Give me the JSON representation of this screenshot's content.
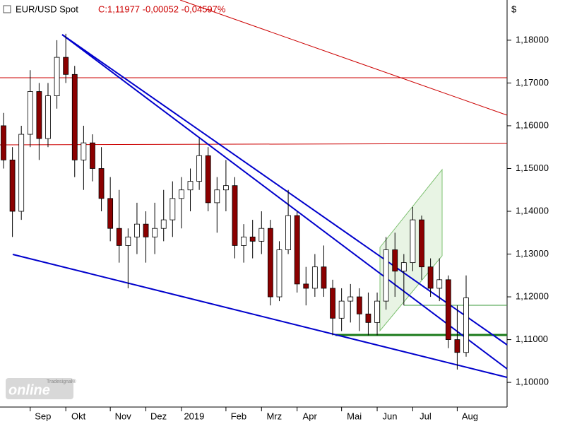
{
  "chart_data": {
    "type": "candlestick",
    "title": "EUR/USD Spot",
    "subtitle": "C:1,11977 -0,00052 -0,04597%",
    "y_axis_label": "$",
    "watermark": {
      "brand": "Tradesignal®",
      "text": "online"
    },
    "up_color": "#ffffff",
    "down_color": "#8b0000",
    "categories": [
      null,
      null,
      null,
      "Sep",
      null,
      null,
      null,
      "Okt",
      null,
      null,
      null,
      null,
      "Nov",
      null,
      null,
      null,
      "Dez",
      null,
      null,
      null,
      "2019",
      null,
      null,
      null,
      null,
      "Feb",
      null,
      null,
      null,
      "Mrz",
      null,
      null,
      null,
      "Apr",
      null,
      null,
      null,
      null,
      "Mai",
      null,
      null,
      null,
      "Jun",
      null,
      null,
      null,
      "Jul",
      null,
      null,
      null,
      null,
      "Aug",
      null
    ],
    "open": [
      1.16,
      1.152,
      1.14,
      1.158,
      1.168,
      1.157,
      1.167,
      1.176,
      1.172,
      1.152,
      1.156,
      1.15,
      1.143,
      1.136,
      1.132,
      1.134,
      1.137,
      1.134,
      1.136,
      1.138,
      1.143,
      1.145,
      1.147,
      1.153,
      1.142,
      1.145,
      1.146,
      1.132,
      1.134,
      1.133,
      1.136,
      1.12,
      1.131,
      1.139,
      1.123,
      1.122,
      1.127,
      1.122,
      1.115,
      1.119,
      1.12,
      1.116,
      1.114,
      1.119,
      1.131,
      1.126,
      1.128,
      1.138,
      1.127,
      1.122,
      1.124,
      1.11,
      1.107
    ],
    "high": [
      1.163,
      1.155,
      1.16,
      1.173,
      1.17,
      1.17,
      1.18,
      1.1815,
      1.174,
      1.16,
      1.158,
      1.155,
      1.148,
      1.145,
      1.136,
      1.142,
      1.14,
      1.142,
      1.145,
      1.147,
      1.148,
      1.15,
      1.157,
      1.155,
      1.148,
      1.152,
      1.148,
      1.137,
      1.138,
      1.14,
      1.138,
      1.133,
      1.145,
      1.14,
      1.127,
      1.13,
      1.132,
      1.124,
      1.122,
      1.123,
      1.122,
      1.121,
      1.121,
      1.134,
      1.135,
      1.13,
      1.141,
      1.139,
      1.129,
      1.129,
      1.125,
      1.118,
      1.125
    ],
    "low": [
      1.15,
      1.134,
      1.138,
      1.155,
      1.152,
      1.155,
      1.164,
      1.17,
      1.148,
      1.145,
      1.147,
      1.14,
      1.133,
      1.128,
      1.122,
      1.13,
      1.128,
      1.13,
      1.133,
      1.134,
      1.136,
      1.14,
      1.145,
      1.14,
      1.135,
      1.14,
      1.129,
      1.128,
      1.129,
      1.13,
      1.118,
      1.119,
      1.13,
      1.121,
      1.118,
      1.12,
      1.12,
      1.111,
      1.112,
      1.114,
      1.112,
      1.111,
      1.111,
      1.117,
      1.12,
      1.118,
      1.126,
      1.124,
      1.12,
      1.119,
      1.108,
      1.103,
      1.106
    ],
    "close": [
      1.152,
      1.14,
      1.158,
      1.168,
      1.157,
      1.167,
      1.176,
      1.172,
      1.152,
      1.156,
      1.15,
      1.143,
      1.136,
      1.132,
      1.134,
      1.137,
      1.134,
      1.136,
      1.138,
      1.143,
      1.145,
      1.147,
      1.153,
      1.142,
      1.145,
      1.146,
      1.132,
      1.134,
      1.133,
      1.136,
      1.12,
      1.131,
      1.139,
      1.123,
      1.122,
      1.127,
      1.122,
      1.115,
      1.119,
      1.12,
      1.116,
      1.114,
      1.119,
      1.131,
      1.126,
      1.128,
      1.138,
      1.127,
      1.122,
      1.124,
      1.11,
      1.107,
      1.11977
    ],
    "ylim": [
      1.0944,
      1.1894
    ],
    "yticks": [
      {
        "value": 1.1,
        "label": "1,10000"
      },
      {
        "value": 1.11,
        "label": "1,11000"
      },
      {
        "value": 1.12,
        "label": "1,12000"
      },
      {
        "value": 1.13,
        "label": "1,13000"
      },
      {
        "value": 1.14,
        "label": "1,14000"
      },
      {
        "value": 1.15,
        "label": "1,15000"
      },
      {
        "value": 1.16,
        "label": "1,16000"
      },
      {
        "value": 1.17,
        "label": "1,17000"
      },
      {
        "value": 1.18,
        "label": "1,18000"
      }
    ]
  }
}
